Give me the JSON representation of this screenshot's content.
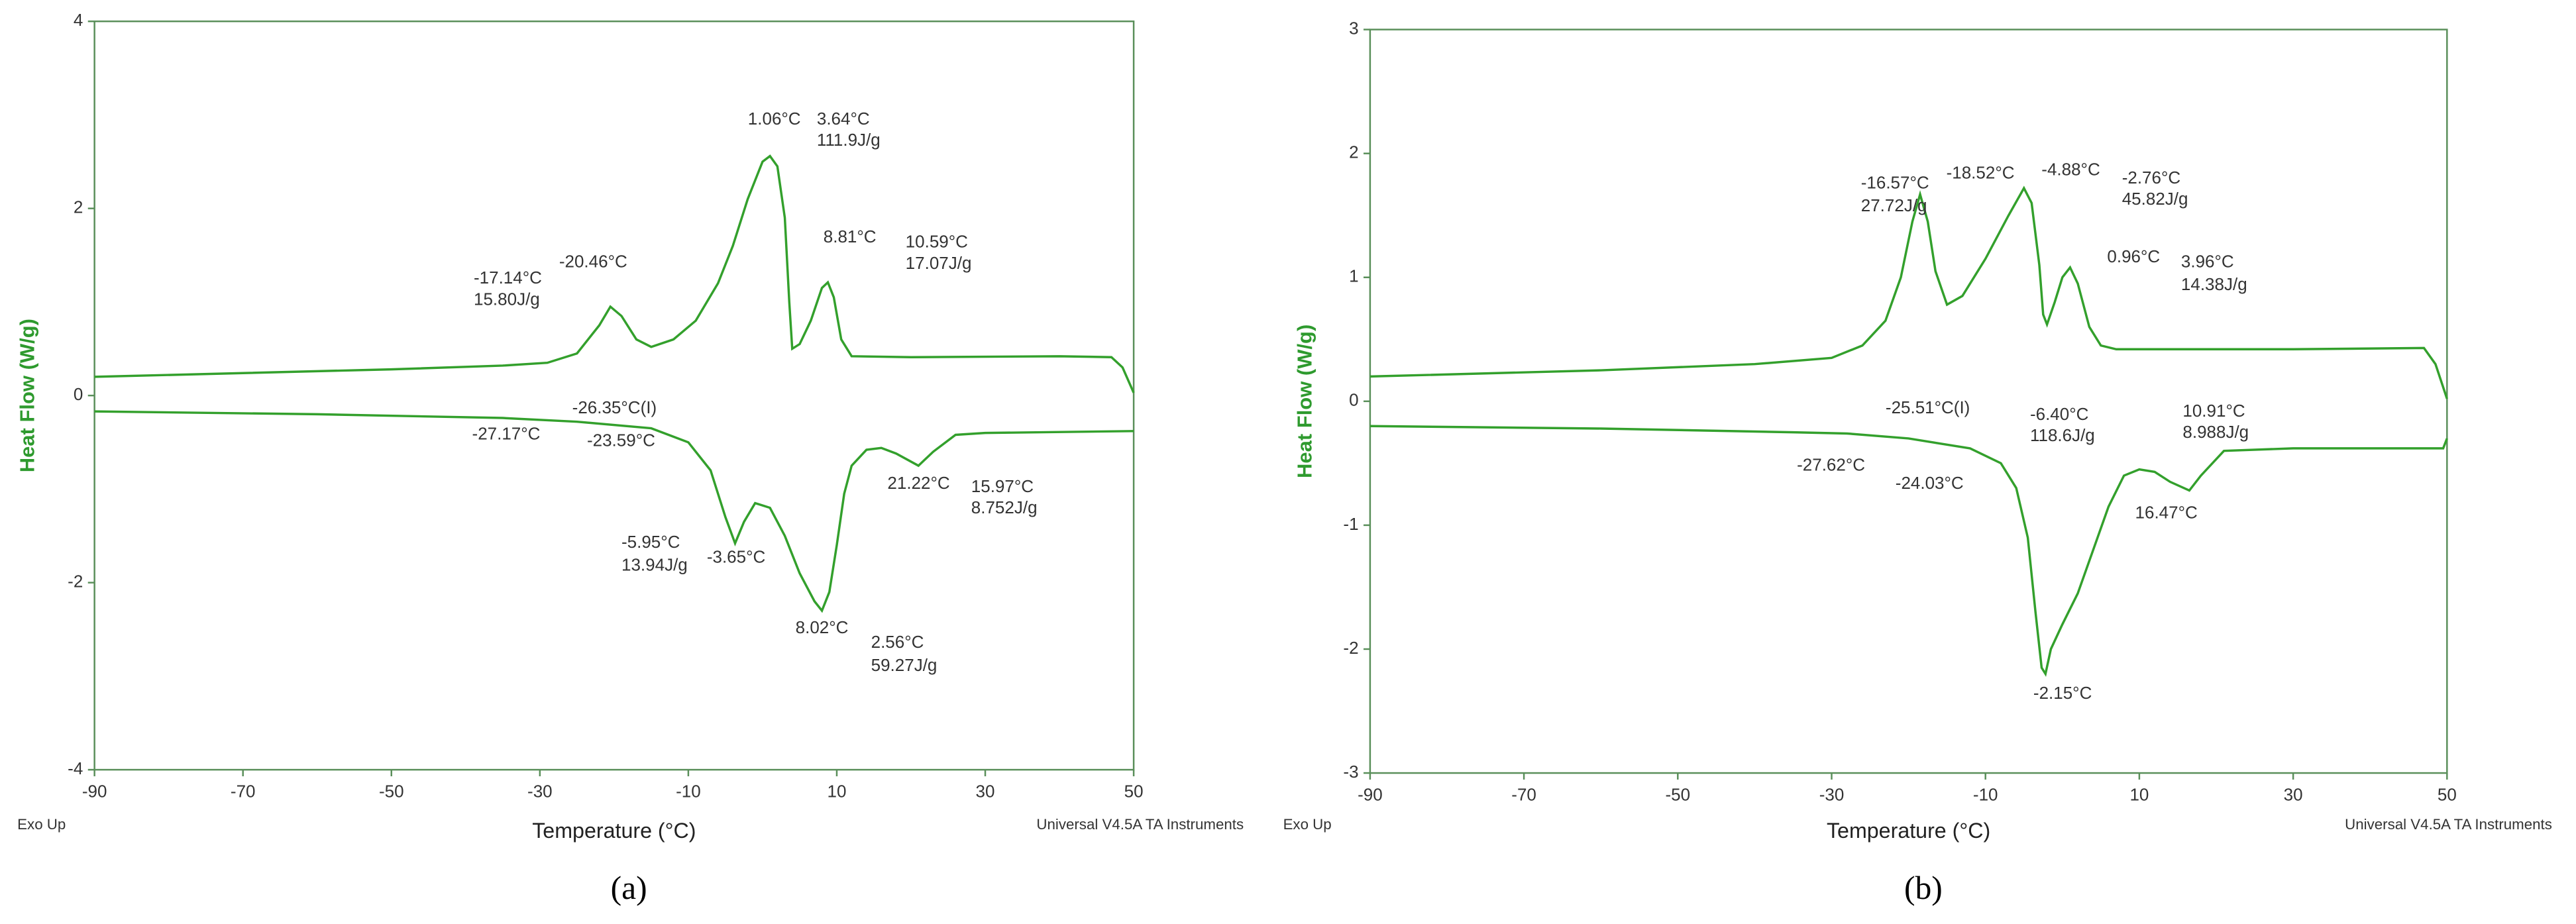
{
  "chart_data": [
    {
      "type": "line",
      "xlabel": "Temperature (°C)",
      "ylabel": "Heat Flow (W/g)",
      "footer_left": "Exo Up",
      "footer_right": "Universal V4.5A TA Instruments",
      "caption": "(a)",
      "xlim": [
        -90,
        50
      ],
      "xticks": [
        -90,
        -70,
        -50,
        -30,
        -10,
        10,
        30,
        50
      ],
      "ylim": [
        -4,
        4
      ],
      "yticks": [
        -4,
        -2,
        0,
        2,
        4
      ],
      "series": [
        {
          "color": "#33a02c",
          "x": [
            -90,
            -70,
            -50,
            -35,
            -29,
            -25,
            -22,
            -20.5,
            -19,
            -17,
            -15,
            -12,
            -9,
            -6,
            -4,
            -2,
            0,
            1,
            2,
            3,
            3.6,
            4,
            5,
            6.5,
            8,
            8.8,
            9.6,
            10.6,
            12,
            20,
            40,
            47,
            48.5,
            50
          ],
          "values": [
            0.2,
            0.24,
            0.28,
            0.32,
            0.35,
            0.45,
            0.75,
            0.95,
            0.85,
            0.6,
            0.52,
            0.6,
            0.8,
            1.2,
            1.6,
            2.1,
            2.5,
            2.56,
            2.45,
            1.9,
            1.0,
            0.5,
            0.55,
            0.8,
            1.15,
            1.21,
            1.05,
            0.6,
            0.42,
            0.41,
            0.42,
            0.41,
            0.3,
            0.03
          ]
        },
        {
          "color": "#33a02c",
          "x": [
            -90,
            -60,
            -35,
            -25,
            -15,
            -10,
            -7,
            -5,
            -3.7,
            -2.5,
            -1,
            1,
            3,
            5,
            7,
            8,
            9,
            10,
            11,
            12,
            14,
            16,
            18,
            21,
            23,
            26,
            30,
            50
          ],
          "values": [
            -0.17,
            -0.2,
            -0.24,
            -0.28,
            -0.35,
            -0.5,
            -0.8,
            -1.3,
            -1.58,
            -1.35,
            -1.15,
            -1.2,
            -1.5,
            -1.9,
            -2.2,
            -2.3,
            -2.1,
            -1.6,
            -1.05,
            -0.75,
            -0.58,
            -0.56,
            -0.62,
            -0.75,
            -0.6,
            -0.42,
            -0.4,
            -0.38
          ]
        }
      ],
      "annotations": [
        "1.06°C",
        "3.64°C",
        "111.9J/g",
        "-17.14°C",
        "15.80J/g",
        "-20.46°C",
        "8.81°C",
        "10.59°C",
        "17.07J/g",
        "-26.35°C(I)",
        "-27.17°C",
        "-23.59°C",
        "-5.95°C",
        "13.94J/g",
        "-3.65°C",
        "21.22°C",
        "15.97°C",
        "8.752J/g",
        "8.02°C",
        "2.56°C",
        "59.27J/g"
      ]
    },
    {
      "type": "line",
      "xlabel": "Temperature (°C)",
      "ylabel": "Heat Flow (W/g)",
      "footer_left": "Exo Up",
      "footer_right": "Universal V4.5A TA Instruments",
      "caption": "(b)",
      "xlim": [
        -90,
        50
      ],
      "xticks": [
        -90,
        -70,
        -50,
        -30,
        -10,
        10,
        30,
        50
      ],
      "ylim": [
        -3,
        3
      ],
      "yticks": [
        -3,
        -2,
        -1,
        0,
        1,
        2,
        3
      ],
      "series": [
        {
          "color": "#33a02c",
          "x": [
            -90,
            -60,
            -40,
            -30,
            -26,
            -23,
            -21,
            -19.5,
            -18.5,
            -17.5,
            -16.5,
            -15,
            -13,
            -10,
            -7,
            -5,
            -4,
            -3,
            -2.5,
            -2,
            -1,
            0,
            1,
            2,
            3.5,
            5,
            7,
            30,
            47,
            48.5,
            50
          ],
          "values": [
            0.2,
            0.25,
            0.3,
            0.35,
            0.45,
            0.65,
            1.0,
            1.45,
            1.67,
            1.45,
            1.05,
            0.78,
            0.85,
            1.15,
            1.5,
            1.72,
            1.6,
            1.1,
            0.7,
            0.62,
            0.8,
            1.0,
            1.08,
            0.95,
            0.6,
            0.45,
            0.42,
            0.42,
            0.43,
            0.3,
            0.02
          ]
        },
        {
          "color": "#33a02c",
          "x": [
            -90,
            -60,
            -35,
            -28,
            -20,
            -12,
            -8,
            -6,
            -4.5,
            -3.5,
            -2.7,
            -2.2,
            -1.5,
            0,
            2,
            4,
            6,
            8,
            10,
            12,
            14,
            16.5,
            18,
            21,
            30,
            49.5,
            50
          ],
          "values": [
            -0.2,
            -0.22,
            -0.25,
            -0.26,
            -0.3,
            -0.38,
            -0.5,
            -0.7,
            -1.1,
            -1.7,
            -2.15,
            -2.2,
            -2.0,
            -1.8,
            -1.55,
            -1.2,
            -0.85,
            -0.6,
            -0.55,
            -0.57,
            -0.65,
            -0.72,
            -0.6,
            -0.4,
            -0.38,
            -0.38,
            -0.3
          ]
        }
      ],
      "annotations": [
        "-16.57°C",
        "27.72J/g",
        "-18.52°C",
        "-4.88°C",
        "-2.76°C",
        "45.82J/g",
        "0.96°C",
        "3.96°C",
        "14.38J/g",
        "-25.51°C(I)",
        "-6.40°C",
        "118.6J/g",
        "10.91°C",
        "8.988J/g",
        "-27.62°C",
        "-24.03°C",
        "16.47°C",
        "-2.15°C"
      ]
    }
  ]
}
